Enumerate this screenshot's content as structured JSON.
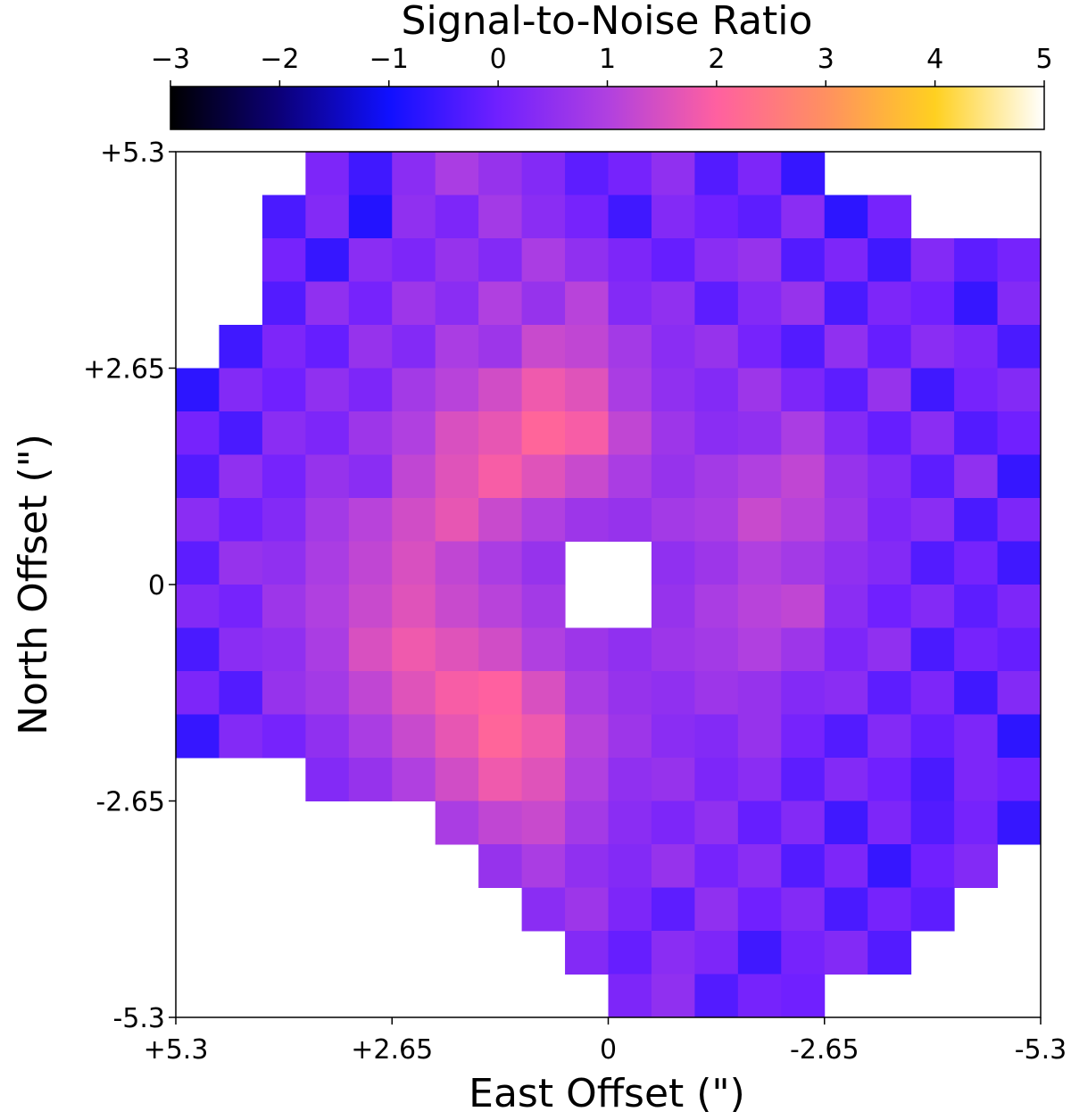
{
  "chart_data": {
    "type": "heatmap",
    "colorbar_label": "Signal-to-Noise Ratio",
    "xlabel": "East Offset (\")",
    "ylabel": "North Offset (\")",
    "xlim": [
      5.3,
      -5.3
    ],
    "ylim": [
      -5.3,
      5.3
    ],
    "xticks": [
      {
        "value": 5.3,
        "label": "+5.3"
      },
      {
        "value": 2.65,
        "label": "+2.65"
      },
      0,
      -2.65,
      -5.3
    ],
    "yticks": [
      {
        "value": 5.3,
        "label": "+5.3"
      },
      {
        "value": 2.65,
        "label": "+2.65"
      },
      0,
      -2.65,
      -5.3
    ],
    "zlim": [
      -3,
      5
    ],
    "colorbar_ticks": [
      {
        "value": -3,
        "label": "−3"
      },
      {
        "value": -2,
        "label": "−2"
      },
      {
        "value": -1,
        "label": "−1"
      },
      0,
      1,
      2,
      3,
      4,
      5
    ],
    "colormap": [
      "#000000",
      "#0c0078",
      "#1010ff",
      "#7020ff",
      "#b040e0",
      "#ff60a0",
      "#ff9060",
      "#ffd020",
      "#ffffff"
    ],
    "z": [
      [
        null,
        null,
        null,
        0.2,
        -0.5,
        0.4,
        0.9,
        0.6,
        0.3,
        -0.2,
        0.1,
        0.5,
        -0.3,
        0.2,
        -0.6,
        null,
        null,
        null,
        null,
        null
      ],
      [
        null,
        null,
        -0.4,
        0.3,
        -0.8,
        0.5,
        0.2,
        0.8,
        0.4,
        0.1,
        -0.5,
        0.3,
        0.0,
        -0.2,
        0.4,
        -0.7,
        0.1,
        null,
        null,
        null
      ],
      [
        null,
        null,
        0.1,
        -0.6,
        0.4,
        0.2,
        0.6,
        0.3,
        0.9,
        0.5,
        0.2,
        -0.1,
        0.4,
        0.6,
        -0.3,
        0.2,
        -0.5,
        0.3,
        -0.2,
        0.1
      ],
      [
        null,
        null,
        -0.3,
        0.5,
        0.1,
        0.7,
        0.4,
        1.0,
        0.6,
        1.1,
        0.3,
        0.5,
        -0.2,
        0.3,
        0.6,
        -0.4,
        0.2,
        0.0,
        -0.6,
        0.3
      ],
      [
        null,
        -0.5,
        0.2,
        -0.1,
        0.6,
        0.3,
        0.9,
        0.7,
        1.3,
        1.2,
        0.8,
        0.4,
        0.6,
        0.1,
        -0.3,
        0.5,
        -0.1,
        0.4,
        0.2,
        -0.4
      ],
      [
        -0.7,
        0.3,
        0.0,
        0.5,
        0.2,
        0.8,
        1.1,
        1.4,
        1.8,
        1.6,
        0.9,
        0.5,
        0.3,
        0.7,
        0.2,
        -0.2,
        0.6,
        -0.5,
        0.1,
        0.3
      ],
      [
        0.1,
        -0.4,
        0.4,
        0.2,
        0.7,
        1.0,
        1.5,
        1.7,
        2.1,
        1.9,
        1.2,
        0.7,
        0.4,
        0.5,
        0.9,
        0.3,
        -0.1,
        0.4,
        -0.3,
        0.0
      ],
      [
        -0.3,
        0.5,
        0.1,
        0.6,
        0.4,
        1.2,
        1.6,
        1.9,
        1.6,
        1.3,
        0.9,
        0.6,
        0.8,
        1.0,
        1.2,
        0.6,
        0.3,
        -0.2,
        0.5,
        -0.6
      ],
      [
        0.4,
        0.0,
        0.3,
        0.8,
        1.1,
        1.4,
        1.7,
        1.3,
        1.0,
        0.7,
        0.6,
        0.8,
        0.9,
        1.3,
        1.1,
        0.7,
        0.2,
        0.4,
        -0.4,
        0.2
      ],
      [
        -0.2,
        0.6,
        0.5,
        0.9,
        1.2,
        1.5,
        1.2,
        0.9,
        0.6,
        null,
        null,
        0.5,
        0.7,
        1.0,
        0.8,
        0.5,
        0.3,
        -0.3,
        0.1,
        -0.5
      ],
      [
        0.3,
        0.1,
        0.7,
        1.0,
        1.3,
        1.6,
        1.3,
        1.1,
        0.8,
        null,
        null,
        0.6,
        0.9,
        1.1,
        1.2,
        0.4,
        0.0,
        0.3,
        -0.2,
        0.2
      ],
      [
        -0.4,
        0.4,
        0.5,
        0.9,
        1.5,
        1.8,
        1.6,
        1.4,
        1.0,
        0.7,
        0.5,
        0.7,
        0.8,
        1.0,
        0.7,
        0.2,
        0.5,
        -0.4,
        0.1,
        -0.1
      ],
      [
        0.2,
        -0.3,
        0.6,
        0.8,
        1.2,
        1.6,
        1.9,
        2.0,
        1.5,
        0.9,
        0.6,
        0.5,
        0.7,
        0.6,
        0.3,
        0.4,
        -0.2,
        0.2,
        -0.5,
        0.3
      ],
      [
        -0.6,
        0.3,
        0.1,
        0.5,
        0.9,
        1.3,
        1.7,
        2.1,
        1.8,
        1.1,
        0.7,
        0.4,
        0.3,
        0.6,
        0.1,
        -0.3,
        0.3,
        -0.1,
        0.2,
        -0.7
      ],
      [
        null,
        null,
        null,
        0.3,
        0.6,
        1.0,
        1.4,
        1.8,
        1.6,
        1.0,
        0.5,
        0.6,
        0.2,
        0.4,
        -0.2,
        0.3,
        0.0,
        -0.4,
        0.2,
        0.0
      ],
      [
        null,
        null,
        null,
        null,
        null,
        null,
        0.9,
        1.2,
        1.3,
        0.8,
        0.4,
        0.2,
        0.5,
        -0.1,
        0.3,
        -0.5,
        0.2,
        -0.3,
        0.1,
        -0.6
      ],
      [
        null,
        null,
        null,
        null,
        null,
        null,
        null,
        0.6,
        0.9,
        0.5,
        0.3,
        0.6,
        0.1,
        0.4,
        -0.3,
        0.2,
        -0.6,
        0.0,
        0.3,
        null
      ],
      [
        null,
        null,
        null,
        null,
        null,
        null,
        null,
        null,
        0.4,
        0.7,
        0.2,
        -0.2,
        0.5,
        0.0,
        0.3,
        -0.4,
        0.1,
        -0.2,
        null,
        null
      ],
      [
        null,
        null,
        null,
        null,
        null,
        null,
        null,
        null,
        null,
        0.3,
        -0.1,
        0.4,
        0.2,
        -0.5,
        0.1,
        0.3,
        -0.3,
        null,
        null,
        null
      ],
      [
        null,
        null,
        null,
        null,
        null,
        null,
        null,
        null,
        null,
        null,
        0.2,
        0.5,
        -0.3,
        0.1,
        0.0,
        null,
        null,
        null,
        null,
        null
      ]
    ]
  }
}
